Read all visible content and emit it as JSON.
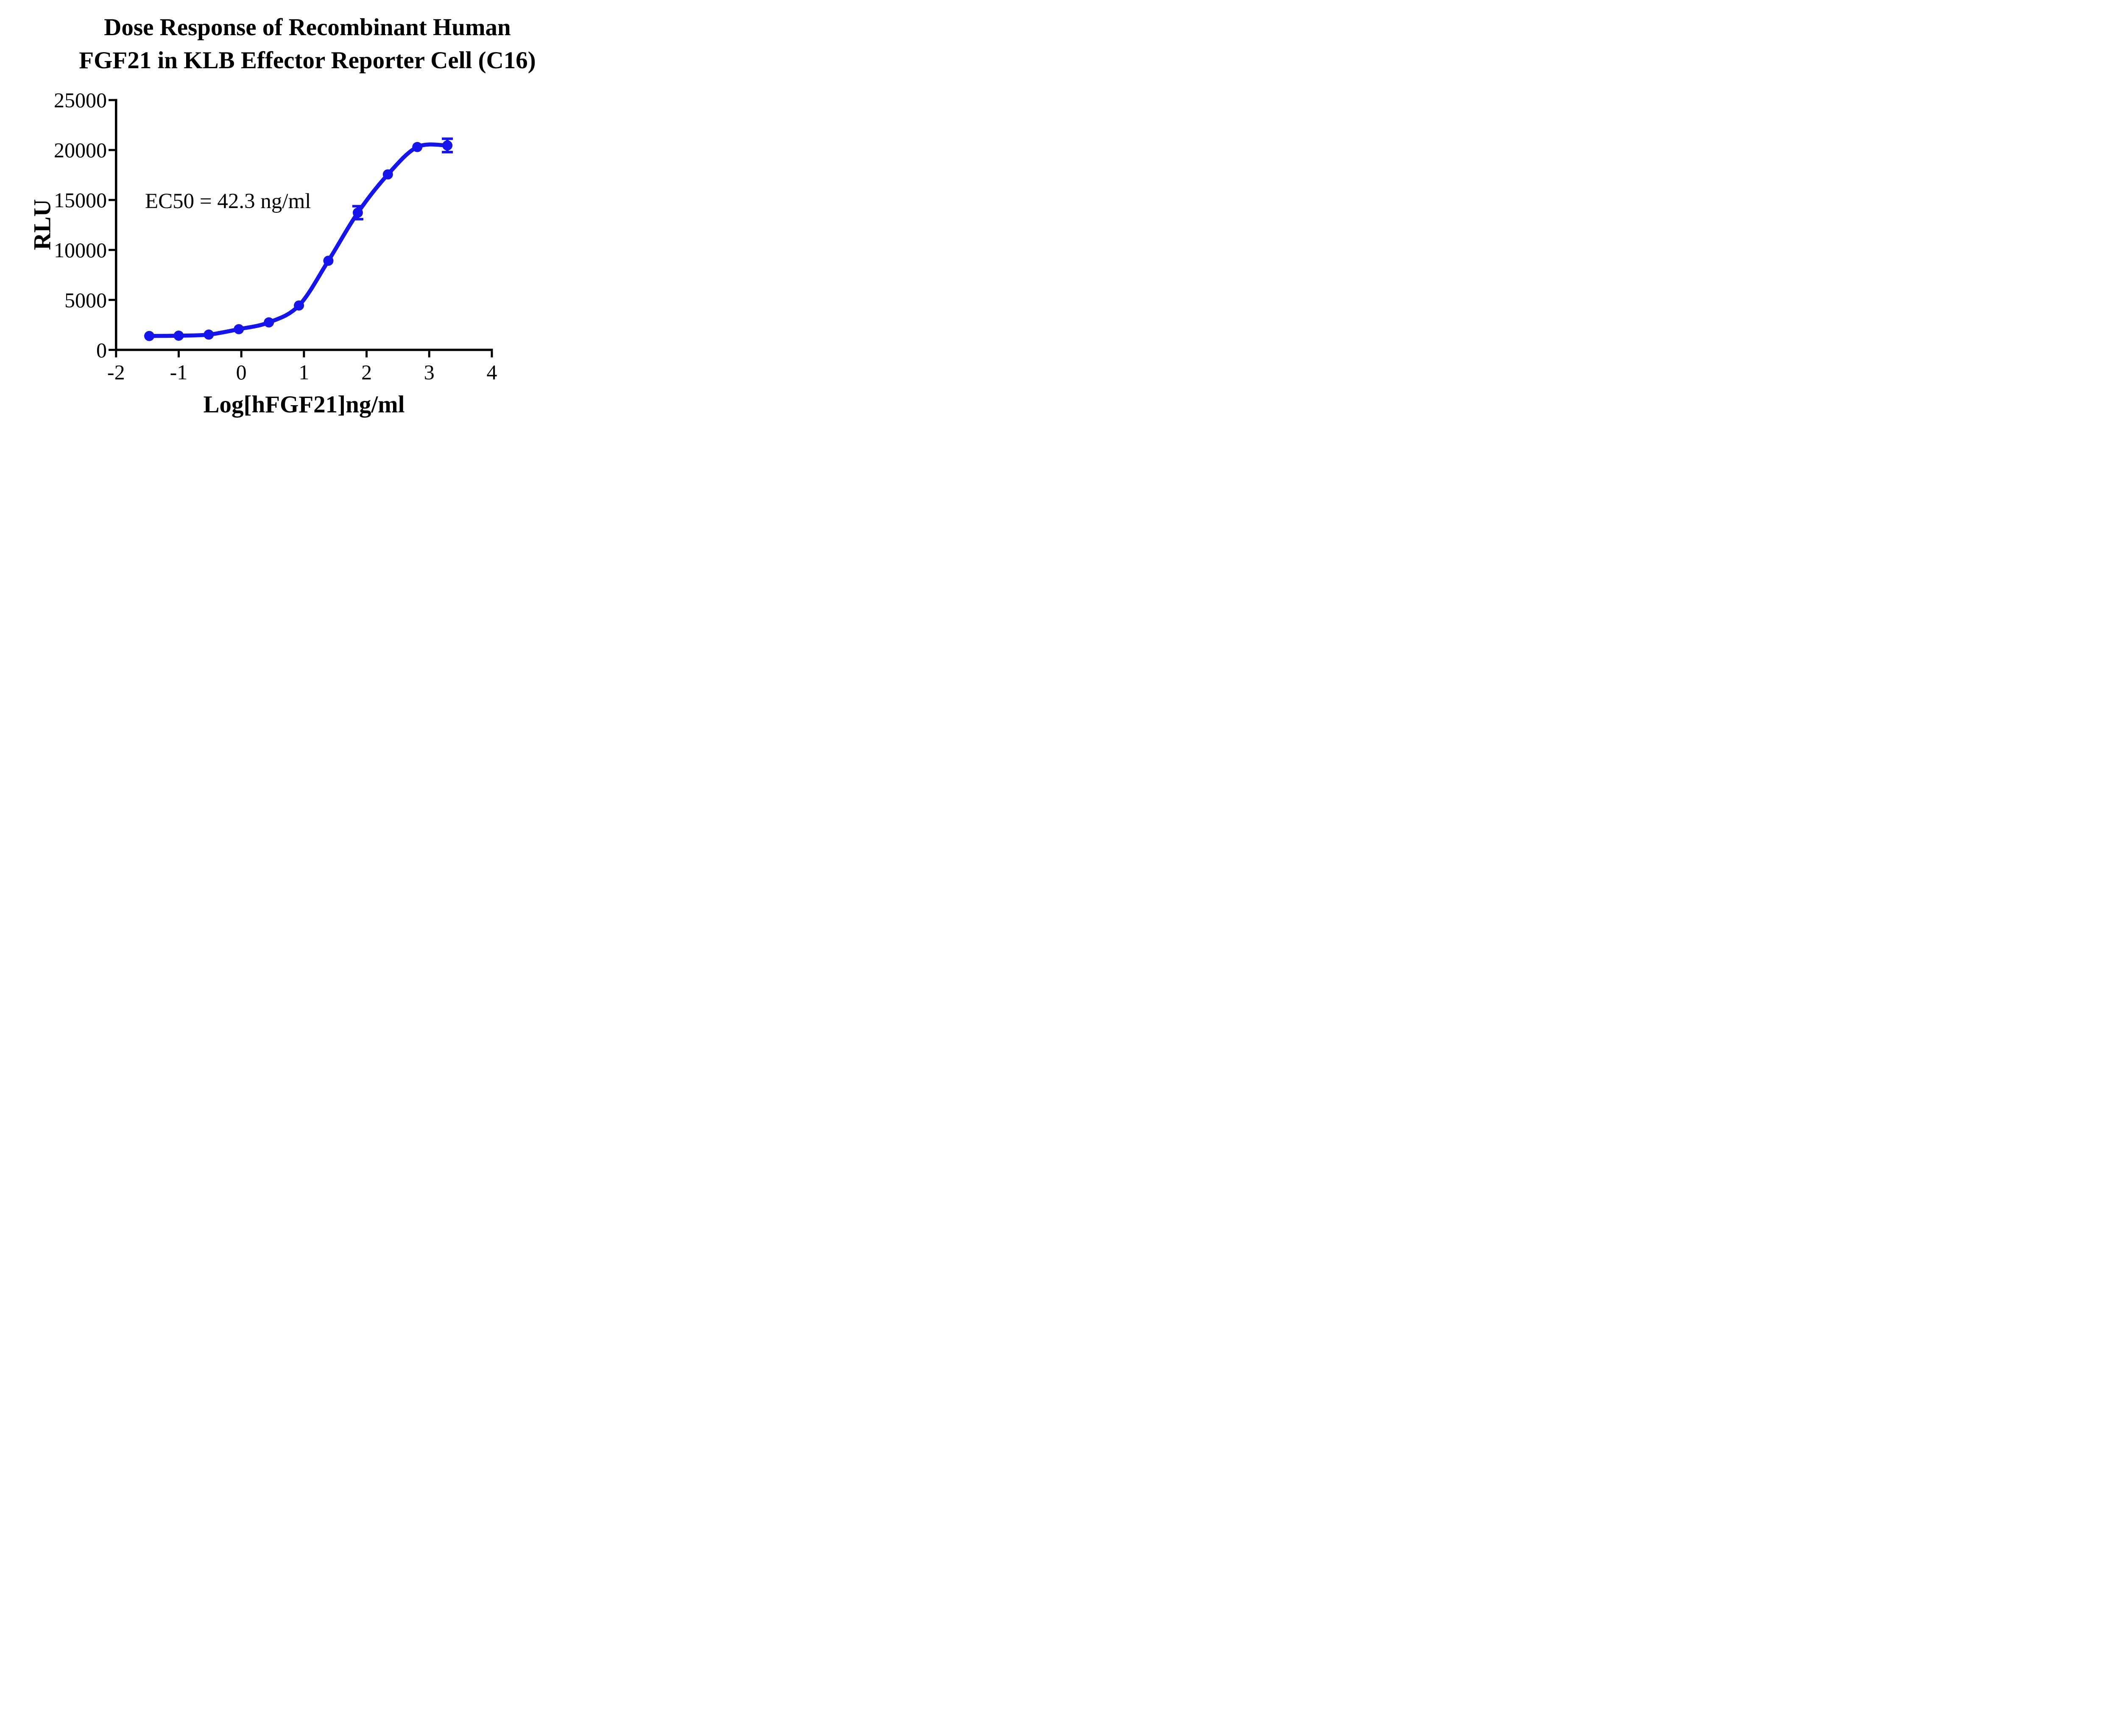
{
  "chart_data": {
    "type": "scatter-line",
    "title": {
      "line1": "Dose Response of Recombinant Human",
      "line2": "FGF21 in KLB Effector Reporter Cell (C16)"
    },
    "xlabel": "Log[hFGF21]ng/ml",
    "ylabel": "RLU",
    "annotation": "EC50 = 42.3 ng/ml",
    "xlim": [
      -2,
      4
    ],
    "ylim": [
      0,
      25000
    ],
    "xticks": [
      -2,
      -1,
      0,
      1,
      2,
      3,
      4
    ],
    "yticks": [
      0,
      5000,
      10000,
      15000,
      20000,
      25000
    ],
    "grid": false,
    "legend": "none",
    "series": [
      {
        "name": "hFGF21",
        "color": "#1414eb",
        "x": [
          -1.47,
          -1.0,
          -0.52,
          -0.04,
          0.44,
          0.92,
          1.39,
          1.86,
          2.34,
          2.81,
          3.29
        ],
        "y": [
          1390,
          1420,
          1530,
          2070,
          2750,
          4440,
          8920,
          13730,
          17560,
          20300,
          20460
        ],
        "yerr": [
          0,
          0,
          0,
          0,
          0,
          0,
          0,
          650,
          0,
          0,
          670
        ]
      }
    ]
  }
}
